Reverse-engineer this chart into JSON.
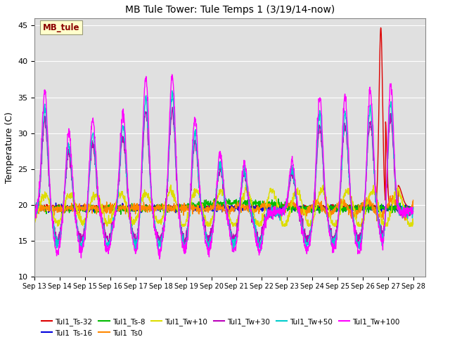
{
  "title": "MB Tule Tower: Tule Temps 1 (3/19/14-now)",
  "ylabel": "Temperature (C)",
  "xlim": [
    0,
    15.5
  ],
  "ylim": [
    10,
    46
  ],
  "yticks": [
    10,
    15,
    20,
    25,
    30,
    35,
    40,
    45
  ],
  "x_labels": [
    "Sep 13",
    "Sep 14",
    "Sep 15",
    "Sep 16",
    "Sep 17",
    "Sep 18",
    "Sep 19",
    "Sep 20",
    "Sep 21",
    "Sep 22",
    "Sep 23",
    "Sep 24",
    "Sep 25",
    "Sep 26",
    "Sep 27",
    "Sep 28"
  ],
  "annotation_text": "MB_tule",
  "annotation_bg": "#ffffcc",
  "annotation_fg": "#8b0000",
  "bg_color": "#e0e0e0",
  "series": [
    {
      "label": "Tul1_Ts-32",
      "color": "#dd0000",
      "lw": 1.0
    },
    {
      "label": "Tul1_Ts-16",
      "color": "#0000dd",
      "lw": 1.0
    },
    {
      "label": "Tul1_Ts-8",
      "color": "#00bb00",
      "lw": 1.0
    },
    {
      "label": "Tul1_Ts0",
      "color": "#ff8800",
      "lw": 1.0
    },
    {
      "label": "Tul1_Tw+10",
      "color": "#dddd00",
      "lw": 1.0
    },
    {
      "label": "Tul1_Tw+30",
      "color": "#bb00bb",
      "lw": 1.0
    },
    {
      "label": "Tul1_Tw+50",
      "color": "#00cccc",
      "lw": 1.0
    },
    {
      "label": "Tul1_Tw+100",
      "color": "#ff00ff",
      "lw": 1.0
    }
  ]
}
